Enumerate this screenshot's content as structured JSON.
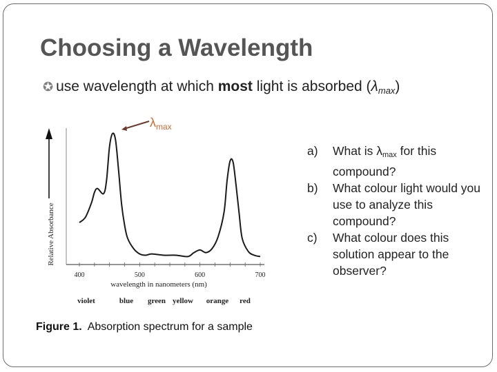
{
  "slide": {
    "title": "Choosing a Wavelength",
    "bullet": {
      "text_before": "use wavelength at which ",
      "bold_word": "most",
      "text_after": " light is absorbed (",
      "lambda": "λ",
      "lambda_sub": "max",
      "close_paren": ")"
    },
    "callout": {
      "lambda": "λ",
      "sub": "max"
    },
    "questions": [
      {
        "letter": "a)",
        "text_before": "What is λ",
        "sub": "max",
        "text_after": " for this compound?"
      },
      {
        "letter": "b)",
        "text": "What colour light would you use to analyze this compound?"
      },
      {
        "letter": "c)",
        "text": "What colour does this solution appear to the observer?"
      }
    ],
    "figure": {
      "ylabel": "Relative Absorbance",
      "xlabel": "wavelength in nanometers (nm)",
      "x_ticks": [
        "400",
        "500",
        "600",
        "700"
      ],
      "colour_labels": [
        "violet",
        "blue",
        "green",
        "yellow",
        "orange",
        "red"
      ],
      "caption_label": "Figure 1.",
      "caption_text": "Absorption spectrum for a sample"
    },
    "colors": {
      "title": "#555555",
      "callout": "#d06a33"
    }
  },
  "chart_data": {
    "type": "line",
    "xlabel": "wavelength in nanometers (nm)",
    "ylabel": "Relative Absorbance",
    "xlim": [
      400,
      700
    ],
    "grid": false,
    "series": [
      {
        "x": [
          400,
          410,
          420,
          425,
          430,
          440,
          445,
          450,
          455,
          460,
          465,
          470,
          475,
          480,
          490,
          500,
          510,
          520,
          540,
          560,
          580,
          590,
          600,
          610,
          620,
          630,
          640,
          645,
          650,
          655,
          660,
          665,
          670,
          680,
          690,
          700
        ],
        "y": [
          0.3,
          0.34,
          0.45,
          0.53,
          0.56,
          0.52,
          0.62,
          0.88,
          0.98,
          0.93,
          0.7,
          0.44,
          0.28,
          0.18,
          0.1,
          0.06,
          0.05,
          0.06,
          0.05,
          0.05,
          0.04,
          0.07,
          0.09,
          0.07,
          0.1,
          0.19,
          0.38,
          0.62,
          0.77,
          0.76,
          0.58,
          0.37,
          0.18,
          0.08,
          0.05,
          0.04
        ]
      }
    ]
  }
}
